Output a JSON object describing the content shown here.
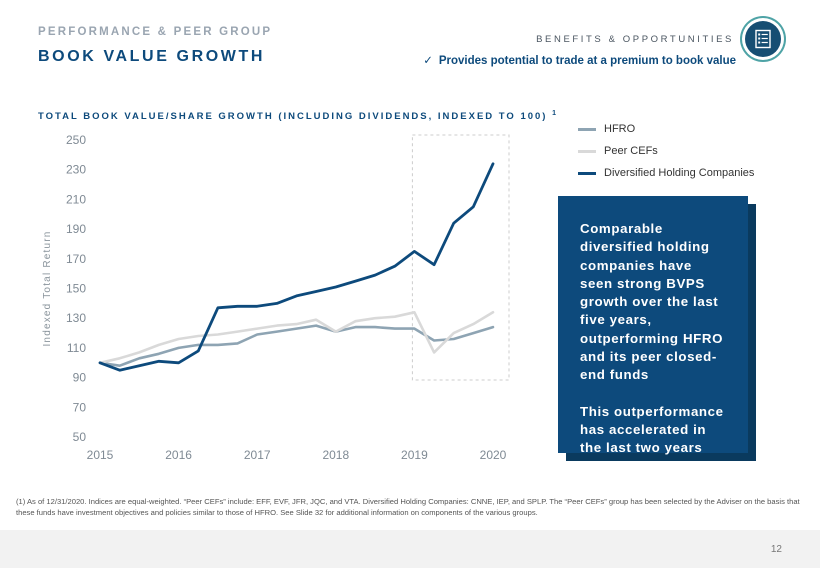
{
  "header": {
    "kicker": "PERFORMANCE & PEER GROUP",
    "title": "BOOK VALUE GROWTH",
    "section_label": "BENEFITS & OPPORTUNITIES",
    "badge_icon": "checklist-icon",
    "benefit_check_icon": "✓",
    "benefit": "Provides potential to trade at a premium to book value"
  },
  "chart_data": {
    "type": "line",
    "title": "TOTAL BOOK VALUE/SHARE GROWTH (INCLUDING DIVIDENDS, INDEXED TO 100)",
    "title_footnote": "1",
    "xlabel": "",
    "ylabel": "Indexed Total Return",
    "ylim": [
      50,
      250
    ],
    "yticks": [
      "50",
      "70",
      "90",
      "110",
      "130",
      "150",
      "170",
      "190",
      "210",
      "230",
      "250"
    ],
    "xlim": [
      2015,
      2020
    ],
    "xticks": [
      "2015",
      "2016",
      "2017",
      "2018",
      "2019",
      "2020"
    ],
    "grid": false,
    "legend": "top-right",
    "highlight_range": [
      2019,
      2020
    ],
    "series": [
      {
        "name": "HFRO",
        "color": "#8ea4b3",
        "x": [
          2015,
          2015.25,
          2015.5,
          2015.75,
          2016,
          2016.25,
          2016.5,
          2016.75,
          2017,
          2017.25,
          2017.5,
          2017.75,
          2018,
          2018.25,
          2018.5,
          2018.75,
          2019,
          2019.25,
          2019.5,
          2019.75,
          2020
        ],
        "values": [
          100,
          98,
          103,
          106,
          110,
          112,
          112,
          113,
          119,
          121,
          123,
          125,
          121,
          124,
          124,
          123,
          123,
          115,
          116,
          120,
          124
        ]
      },
      {
        "name": "Peer CEFs",
        "color": "#d9d9d9",
        "x": [
          2015,
          2015.25,
          2015.5,
          2015.75,
          2016,
          2016.25,
          2016.5,
          2016.75,
          2017,
          2017.25,
          2017.5,
          2017.75,
          2018,
          2018.25,
          2018.5,
          2018.75,
          2019,
          2019.25,
          2019.5,
          2019.75,
          2020
        ],
        "values": [
          100,
          103,
          107,
          112,
          116,
          118,
          119,
          121,
          123,
          125,
          126,
          129,
          121,
          128,
          130,
          131,
          134,
          107,
          120,
          126,
          134
        ]
      },
      {
        "name": "Diversified Holding Companies",
        "color": "#0d4a7c",
        "x": [
          2015,
          2015.25,
          2015.5,
          2015.75,
          2016,
          2016.25,
          2016.5,
          2016.75,
          2017,
          2017.25,
          2017.5,
          2017.75,
          2018,
          2018.25,
          2018.5,
          2018.75,
          2019,
          2019.25,
          2019.5,
          2019.75,
          2020
        ],
        "values": [
          100,
          95,
          98,
          101,
          100,
          108,
          137,
          138,
          138,
          140,
          145,
          148,
          151,
          155,
          159,
          165,
          175,
          166,
          194,
          205,
          234
        ]
      }
    ]
  },
  "callout": {
    "paragraph1": "Comparable diversified holding companies have seen strong BVPS growth over the last five years, outperforming HFRO and its peer closed-end funds",
    "paragraph2": "This outperformance has accelerated in the last two years"
  },
  "footnote": "(1) As of 12/31/2020. Indices are equal-weighted. “Peer CEFs” include: EFF, EVF, JFR, JQC, and VTA. Diversified Holding Companies: CNNE, IEP, and SPLP. The “Peer CEFs” group has been selected by the Adviser on the basis that these funds have investment objectives and policies similar to those of HFRO. See Slide 32 for additional information on components of the various groups.",
  "page_number": "12"
}
